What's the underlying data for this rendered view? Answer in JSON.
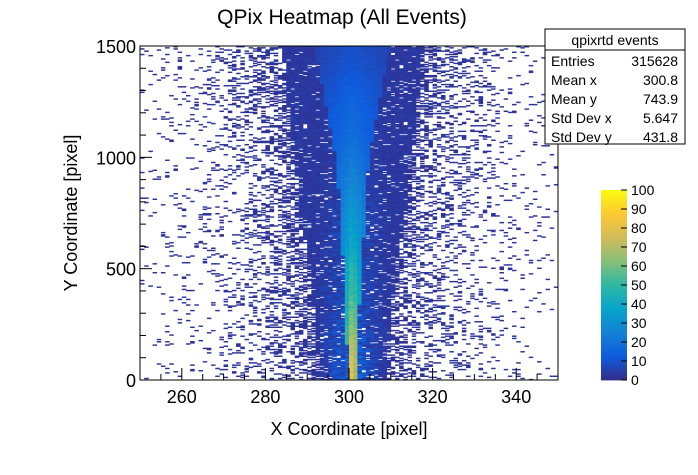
{
  "chart_data": {
    "type": "heatmap",
    "title": "QPix Heatmap (All Events)",
    "xlabel": "X Coordinate [pixel]",
    "ylabel": "Y Coordinate [pixel]",
    "xlim": [
      250,
      350
    ],
    "ylim": [
      0,
      1500
    ],
    "xticks": [
      "260",
      "280",
      "300",
      "320",
      "340"
    ],
    "yticks": [
      "0",
      "500",
      "1000",
      "1500"
    ],
    "zlim": [
      0,
      100
    ],
    "zticks": [
      "0",
      "10",
      "20",
      "30",
      "40",
      "50",
      "60",
      "70",
      "80",
      "90",
      "100"
    ],
    "palette": [
      "#352a87",
      "#0f5cdd",
      "#1481d6",
      "#06a4ca",
      "#2eb7a4",
      "#87bf77",
      "#d1bb59",
      "#fec832",
      "#f9fb0e"
    ],
    "profile": {
      "center_x": 300.8,
      "y": [
        0,
        100,
        200,
        300,
        400,
        500,
        600,
        700,
        800,
        900,
        1000,
        1100,
        1200,
        1300,
        1400,
        1500
      ],
      "core_half_width": [
        1,
        1,
        1.5,
        1.5,
        2,
        2,
        2.5,
        3,
        3,
        3.5,
        4,
        5,
        6,
        7,
        8,
        9
      ],
      "dense_half_width": [
        8,
        8,
        9,
        9,
        10,
        10,
        11,
        12,
        13,
        13,
        14,
        15,
        15,
        16,
        16,
        17
      ],
      "peak_counts": [
        100,
        95,
        80,
        70,
        60,
        55,
        45,
        40,
        35,
        30,
        25,
        20,
        18,
        15,
        12,
        10
      ]
    },
    "stats": {
      "title": "qpixrtd events",
      "rows": [
        {
          "label": "Entries",
          "value": "315628"
        },
        {
          "label": "Mean x",
          "value": "300.8"
        },
        {
          "label": "Mean y",
          "value": "743.9"
        },
        {
          "label": "Std Dev x",
          "value": "5.647"
        },
        {
          "label": "Std Dev y",
          "value": "431.8"
        }
      ]
    }
  }
}
